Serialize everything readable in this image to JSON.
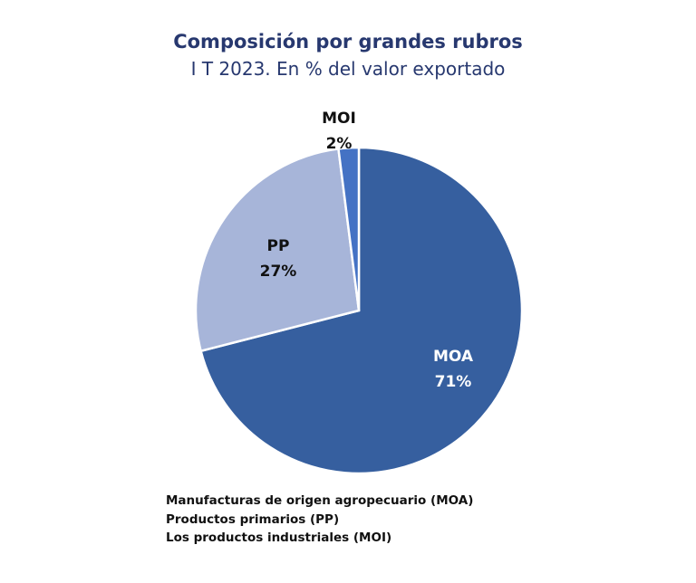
{
  "chart_data": {
    "type": "pie",
    "title": "Composición por grandes rubros",
    "subtitle": "I T 2023. En % del valor exportado",
    "slices": [
      {
        "name": "MOA",
        "value": 71,
        "label": "71%",
        "color": "#365f9f",
        "text_color": "#ffffff"
      },
      {
        "name": "PP",
        "value": 27,
        "label": "27%",
        "color": "#a7b5d9",
        "text_color": "#111111"
      },
      {
        "name": "MOI",
        "value": 2,
        "label": "2%",
        "color": "#4472c4",
        "text_color": "#111111"
      }
    ],
    "legend": [
      "Manufacturas de origen agropecuario (MOA)",
      "Productos primarios (PP)",
      "Los productos industriales (MOI)"
    ]
  }
}
